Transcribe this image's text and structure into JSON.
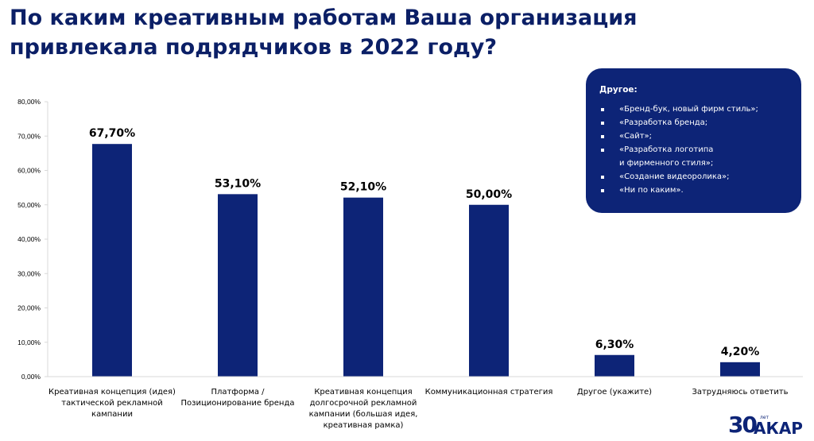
{
  "page": {
    "title_line1": "По каким креативным работам Ваша организация",
    "title_line2": "привлекала подрядчиков в 2022 году?"
  },
  "callout": {
    "heading": "Другое:",
    "items": [
      "«Бренд-бук, новый фирм стиль»;",
      "«Разработка бренда;",
      "«Сайт»;",
      "«Разработка логотипа\nи фирменного стиля»;",
      "«Создание видеоролика»;",
      "«Ни по каким»."
    ]
  },
  "logo": {
    "number": "30",
    "small": "лет",
    "word": "АКАР"
  },
  "colors": {
    "bar": "#0d2477",
    "axis": "#d9d9d9",
    "text": "#000000"
  },
  "chart_data": {
    "type": "bar",
    "categories": [
      [
        "Креативная концепция (идея)",
        "тактической рекламной",
        "кампании"
      ],
      [
        "Платформа /",
        "Позиционирование бренда"
      ],
      [
        "Креативная концепция",
        "долгосрочной рекламной",
        "кампании (большая идея,",
        "креативная рамка)"
      ],
      [
        "Коммуникационная стратегия"
      ],
      [
        "Другое (укажите)"
      ],
      [
        "Затрудняюсь ответить"
      ]
    ],
    "values": [
      67.7,
      53.1,
      52.1,
      50.0,
      6.3,
      4.2
    ],
    "data_labels": [
      "67,70%",
      "53,10%",
      "52,10%",
      "50,00%",
      "6,30%",
      "4,20%"
    ],
    "y_ticks": [
      "0,00%",
      "10,00%",
      "20,00%",
      "30,00%",
      "40,00%",
      "50,00%",
      "60,00%",
      "70,00%",
      "80,00%"
    ],
    "ylim": [
      0,
      80
    ],
    "grid": false,
    "title": "",
    "xlabel": "",
    "ylabel": ""
  }
}
